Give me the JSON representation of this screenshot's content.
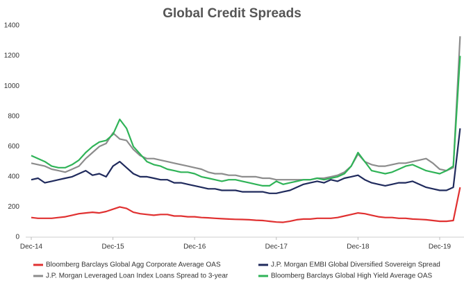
{
  "chart_data": {
    "type": "line",
    "title": "Global Credit Spreads",
    "categories": [
      "Dec-14",
      null,
      null,
      null,
      null,
      null,
      null,
      null,
      null,
      null,
      null,
      null,
      "Dec-15",
      null,
      null,
      null,
      null,
      null,
      null,
      null,
      null,
      null,
      null,
      null,
      "Dec-16",
      null,
      null,
      null,
      null,
      null,
      null,
      null,
      null,
      null,
      null,
      null,
      "Dec-17",
      null,
      null,
      null,
      null,
      null,
      null,
      null,
      null,
      null,
      null,
      null,
      "Dec-18",
      null,
      null,
      null,
      null,
      null,
      null,
      null,
      null,
      null,
      null,
      null,
      "Dec-19",
      null,
      null,
      null
    ],
    "series": [
      {
        "name": "Bloomberg Barclays Global Agg Corporate Average OAS",
        "color": "#e03030",
        "values": [
          130,
          125,
          125,
          125,
          130,
          135,
          145,
          155,
          160,
          165,
          160,
          170,
          185,
          200,
          190,
          165,
          155,
          150,
          145,
          150,
          150,
          140,
          140,
          135,
          135,
          130,
          128,
          125,
          122,
          120,
          118,
          117,
          115,
          112,
          110,
          105,
          100,
          98,
          105,
          115,
          120,
          120,
          125,
          125,
          125,
          130,
          140,
          150,
          160,
          155,
          145,
          135,
          130,
          130,
          125,
          125,
          120,
          118,
          115,
          110,
          105,
          105,
          110,
          330
        ]
      },
      {
        "name": "J.P. Morgan EMBI Global Diversified Sovereign Spread",
        "color": "#1f2a5c",
        "values": [
          380,
          390,
          360,
          370,
          380,
          390,
          400,
          420,
          440,
          410,
          420,
          400,
          470,
          500,
          460,
          420,
          400,
          400,
          390,
          380,
          380,
          360,
          360,
          350,
          340,
          330,
          320,
          320,
          310,
          310,
          310,
          300,
          300,
          300,
          300,
          290,
          290,
          300,
          310,
          330,
          350,
          360,
          370,
          360,
          380,
          370,
          390,
          400,
          410,
          380,
          360,
          350,
          340,
          350,
          360,
          360,
          370,
          350,
          330,
          320,
          310,
          310,
          330,
          720
        ]
      },
      {
        "name": "J.P. Morgan Leveraged Loan Index Loans Spread to 3-year",
        "color": "#8c8c8c",
        "values": [
          490,
          480,
          470,
          450,
          440,
          430,
          450,
          470,
          520,
          560,
          600,
          620,
          690,
          650,
          640,
          580,
          540,
          520,
          520,
          510,
          500,
          490,
          480,
          470,
          460,
          450,
          430,
          420,
          420,
          410,
          410,
          400,
          400,
          400,
          390,
          390,
          380,
          380,
          380,
          380,
          380,
          380,
          390,
          390,
          400,
          410,
          430,
          470,
          550,
          500,
          480,
          470,
          470,
          480,
          490,
          490,
          500,
          510,
          520,
          490,
          450,
          440,
          460,
          1330
        ]
      },
      {
        "name": "Bloomberg Barclays Global High Yield Average OAS",
        "color": "#2fb357",
        "values": [
          540,
          520,
          500,
          470,
          460,
          460,
          480,
          510,
          560,
          600,
          630,
          640,
          680,
          780,
          720,
          600,
          550,
          500,
          480,
          470,
          450,
          440,
          430,
          430,
          420,
          400,
          390,
          380,
          370,
          380,
          380,
          370,
          360,
          350,
          340,
          340,
          370,
          350,
          360,
          370,
          380,
          380,
          390,
          380,
          390,
          400,
          420,
          470,
          560,
          500,
          440,
          430,
          420,
          430,
          450,
          470,
          480,
          460,
          440,
          430,
          420,
          440,
          470,
          1200
        ]
      }
    ],
    "ylim": [
      0,
      1400
    ],
    "yticks": [
      0,
      200,
      400,
      600,
      800,
      1000,
      1200,
      1400
    ],
    "legend": "bottom"
  }
}
